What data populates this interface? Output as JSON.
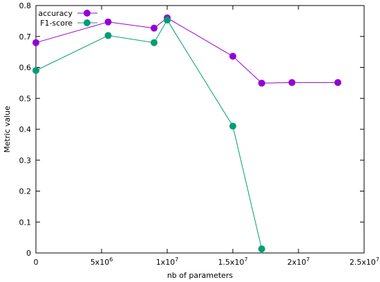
{
  "chart_data": {
    "type": "line",
    "xlabel": "nb of parameters",
    "ylabel": "Metric value",
    "xlim": [
      0,
      25000000
    ],
    "ylim": [
      0,
      0.8
    ],
    "x_ticks": [
      {
        "value": 0,
        "label": "0"
      },
      {
        "value": 5000000,
        "label": "5x10",
        "exp": "6"
      },
      {
        "value": 10000000,
        "label": "1x10",
        "exp": "7"
      },
      {
        "value": 15000000,
        "label": "1.5x10",
        "exp": "7"
      },
      {
        "value": 20000000,
        "label": "2x10",
        "exp": "7"
      },
      {
        "value": 25000000,
        "label": "2.5x10",
        "exp": "7"
      }
    ],
    "y_ticks": [
      {
        "value": 0,
        "label": "0"
      },
      {
        "value": 0.1,
        "label": "0.1"
      },
      {
        "value": 0.2,
        "label": "0.2"
      },
      {
        "value": 0.3,
        "label": "0.3"
      },
      {
        "value": 0.4,
        "label": "0.4"
      },
      {
        "value": 0.5,
        "label": "0.5"
      },
      {
        "value": 0.6,
        "label": "0.6"
      },
      {
        "value": 0.7,
        "label": "0.7"
      },
      {
        "value": 0.8,
        "label": "0.8"
      }
    ],
    "grid": false,
    "legend_position": "top-left",
    "series": [
      {
        "name": "accuracy",
        "color": "#9400d3",
        "x": [
          0,
          5500000,
          9000000,
          10000000,
          15000000,
          17200000,
          19500000,
          23000000
        ],
        "y": [
          0.68,
          0.747,
          0.727,
          0.76,
          0.636,
          0.549,
          0.551,
          0.551
        ]
      },
      {
        "name": "F1-score",
        "color": "#009e73",
        "x": [
          0,
          5500000,
          9000000,
          10000000,
          15000000,
          17200000
        ],
        "y": [
          0.59,
          0.703,
          0.68,
          0.753,
          0.41,
          0.013
        ]
      }
    ]
  }
}
